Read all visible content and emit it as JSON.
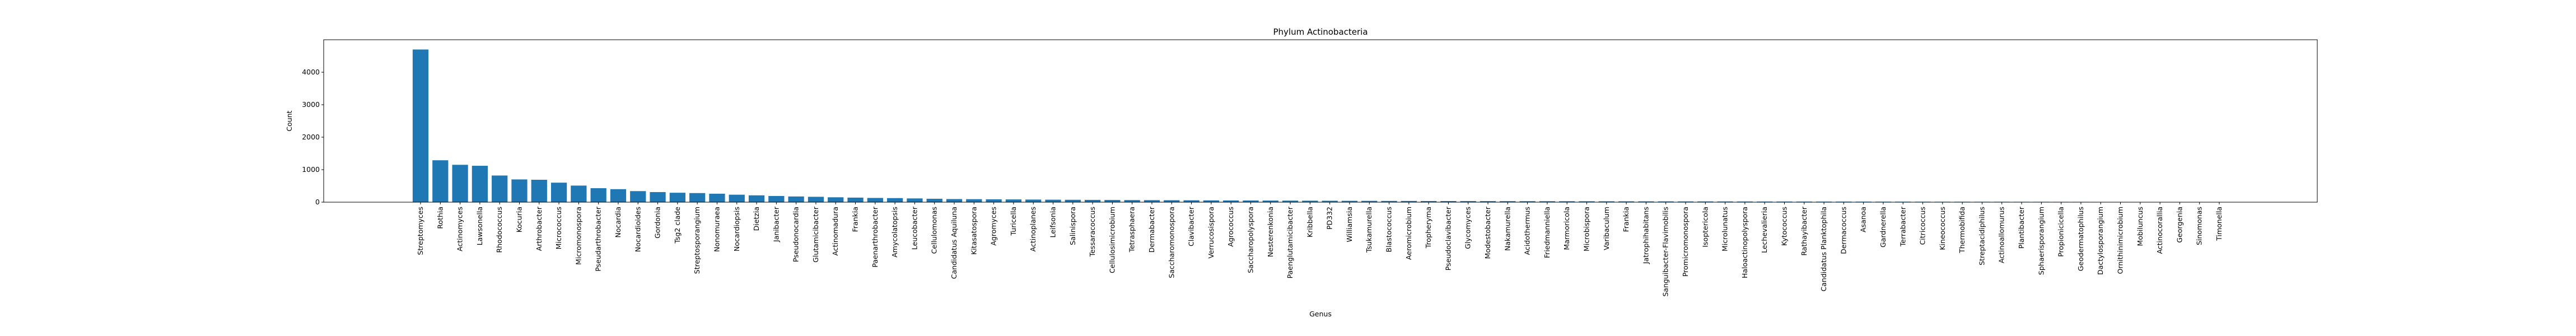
{
  "chart_data": {
    "type": "bar",
    "title": "Phylum Actinobacteria",
    "xlabel": "Genus",
    "ylabel": "Count",
    "ylim": [
      0,
      5000
    ],
    "yticks": [
      0,
      1000,
      2000,
      3000,
      4000
    ],
    "grid": false,
    "bar_color": "#1f77b4",
    "categories": [
      "Streptomyces",
      "Rothia",
      "Actinomyces",
      "Lawsonella",
      "Rhodococcus",
      "Kocuria",
      "Arthrobacter",
      "Micrococcus",
      "Micromonospora",
      "Pseudarthrobacter",
      "Nocardia",
      "Nocardioides",
      "Gordonia",
      "Tsg2 clade",
      "Streptosporangium",
      "Nonomuraea",
      "Nocardiopsis",
      "Dietzia",
      "Janibacter",
      "Pseudonocardia",
      "Glutamicibacter",
      "Actinomadura",
      "Frankia",
      "Paenarthrobacter",
      "Amycolatopsis",
      "Leucobacter",
      "Cellulomonas",
      "Candidatus Aquiluna",
      "Kitasatospora",
      "Agromyces",
      "Turicella",
      "Actinoplanes",
      "Leifsonia",
      "Salinispora",
      "Tessaracoccus",
      "Cellulosimicrobium",
      "Tetrasphaera",
      "Dermabacter",
      "Saccharomonospora",
      "Clavibacter",
      "Verrucosispora",
      "Agrococcus",
      "Saccharopolyspora",
      "Nesterenkonia",
      "Paenglutamicibacter",
      "Kribbella",
      "PD332",
      "Williamsia",
      "Tsukamurella",
      "Blastococcus",
      "Aeromicrobium",
      "Tropheryma",
      "Pseudoclavibacter",
      "Glycomyces",
      "Modestobacter",
      "Nakamurella",
      "Acidothermus",
      "Friedmanniella",
      "Marmoricola",
      "Microbispora",
      "Varibaculum",
      "Frankia",
      "Jatrophihabitans",
      "Sanguibacter-Flavimobilis",
      "Promicromonospora",
      "Isoptericola",
      "Microlunatus",
      "Haloactinopolyspora",
      "Lechevalieria",
      "Kytococcus",
      "Rathayibacter",
      "Candidatus Planktophila",
      "Dermacoccus",
      "Asanoa",
      "Gardnerella",
      "Terrabacter",
      "Citricoccus",
      "Kineococcus",
      "Thermobifida",
      "Streptacidiphilus",
      "Actinoallomurus",
      "Plantibacter",
      "Sphaerisporangium",
      "Propionicicella",
      "Geodermatophilus",
      "Dactylosporangium",
      "Ornithinimicrobium",
      "Mobiluncus",
      "Actinocorallia",
      "Georgenia",
      "Sinomonas",
      "Timonella"
    ],
    "values": [
      4700,
      1290,
      1150,
      1120,
      820,
      700,
      690,
      600,
      510,
      430,
      400,
      340,
      310,
      290,
      280,
      260,
      230,
      210,
      190,
      175,
      165,
      150,
      140,
      130,
      125,
      115,
      105,
      95,
      92,
      88,
      84,
      80,
      76,
      73,
      70,
      67,
      64,
      62,
      60,
      58,
      55,
      53,
      51,
      49,
      47,
      45,
      43,
      41,
      40,
      38,
      37,
      35,
      34,
      33,
      32,
      31,
      30,
      29,
      28,
      27,
      26,
      25,
      24,
      23,
      22,
      22,
      21,
      20,
      19,
      19,
      18,
      17,
      17,
      16,
      15,
      15,
      14,
      13,
      13,
      12,
      12,
      11,
      11,
      10,
      10,
      9,
      9,
      8,
      8,
      7,
      7,
      6
    ]
  }
}
